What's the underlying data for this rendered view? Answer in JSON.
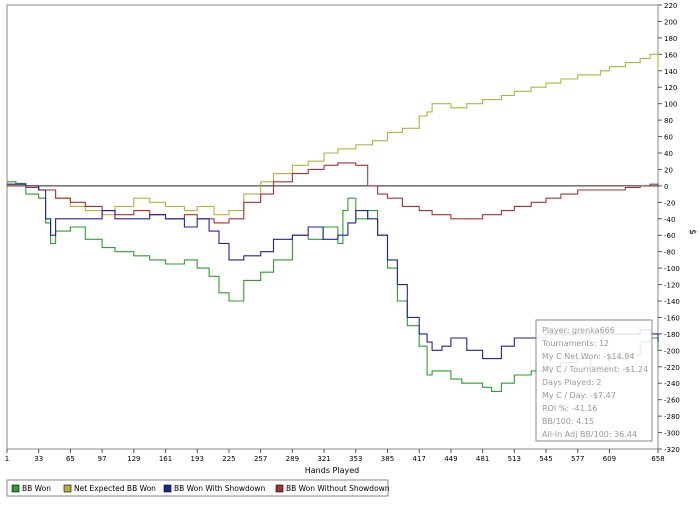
{
  "chart_data": {
    "type": "line",
    "xlabel": "Hands Played",
    "ylabel": "$",
    "x_ticks": [
      1,
      33,
      65,
      97,
      129,
      161,
      193,
      225,
      257,
      289,
      321,
      353,
      385,
      417,
      449,
      481,
      513,
      545,
      577,
      609,
      658
    ],
    "xlim": [
      1,
      658
    ],
    "ylim": [
      -320,
      220
    ],
    "y_ticks": [
      220,
      200,
      180,
      160,
      140,
      120,
      100,
      80,
      60,
      40,
      20,
      0,
      -20,
      -40,
      -60,
      -80,
      -100,
      -120,
      -140,
      -160,
      -180,
      -200,
      -220,
      -240,
      -260,
      -280,
      -300,
      -320
    ],
    "grid": false,
    "legend_position": "bottom-left",
    "series": [
      {
        "name": "BB Won",
        "color": "#2e9e2e",
        "x": [
          1,
          10,
          20,
          33,
          40,
          45,
          50,
          65,
          80,
          97,
          110,
          129,
          145,
          161,
          180,
          193,
          205,
          215,
          225,
          240,
          257,
          270,
          289,
          305,
          320,
          335,
          340,
          345,
          353,
          365,
          375,
          385,
          395,
          405,
          417,
          425,
          430,
          449,
          460,
          481,
          490,
          500,
          513,
          530,
          545,
          560,
          577,
          590,
          609,
          625,
          640,
          650,
          658
        ],
        "y": [
          5,
          3,
          -10,
          -15,
          -45,
          -70,
          -55,
          -50,
          -65,
          -75,
          -80,
          -85,
          -90,
          -95,
          -90,
          -100,
          -110,
          -130,
          -140,
          -115,
          -105,
          -90,
          -60,
          -65,
          -50,
          -70,
          -30,
          -15,
          -40,
          -30,
          -60,
          -100,
          -140,
          -170,
          -195,
          -230,
          -225,
          -235,
          -240,
          -245,
          -250,
          -240,
          -230,
          -225,
          -220,
          -215,
          -210,
          -220,
          -210,
          -205,
          -190,
          -185,
          -200
        ]
      },
      {
        "name": "Net Expected BB Won",
        "color": "#b5b23a",
        "x": [
          1,
          20,
          33,
          50,
          65,
          80,
          97,
          110,
          129,
          145,
          161,
          180,
          193,
          210,
          225,
          240,
          257,
          270,
          289,
          305,
          321,
          335,
          353,
          370,
          385,
          400,
          417,
          425,
          430,
          449,
          465,
          481,
          500,
          513,
          530,
          545,
          560,
          577,
          600,
          609,
          625,
          640,
          650,
          658
        ],
        "y": [
          2,
          0,
          -5,
          -15,
          -25,
          -30,
          -35,
          -25,
          -15,
          -20,
          -25,
          -30,
          -25,
          -35,
          -30,
          -10,
          5,
          15,
          25,
          30,
          40,
          45,
          50,
          55,
          65,
          70,
          85,
          90,
          100,
          95,
          100,
          105,
          110,
          115,
          120,
          125,
          130,
          135,
          140,
          145,
          150,
          155,
          160,
          140
        ]
      },
      {
        "name": "BB Won With Showdown",
        "color": "#22229a",
        "x": [
          1,
          20,
          33,
          40,
          45,
          50,
          65,
          80,
          97,
          110,
          129,
          145,
          161,
          180,
          193,
          205,
          215,
          225,
          240,
          257,
          270,
          289,
          305,
          320,
          335,
          345,
          353,
          365,
          375,
          385,
          395,
          405,
          417,
          425,
          430,
          440,
          449,
          465,
          481,
          500,
          513,
          545,
          577,
          609,
          630,
          640,
          650,
          658
        ],
        "y": [
          2,
          0,
          -5,
          -40,
          -60,
          -40,
          -40,
          -40,
          -30,
          -40,
          -40,
          -35,
          -40,
          -50,
          -40,
          -55,
          -70,
          -90,
          -85,
          -80,
          -65,
          -60,
          -50,
          -65,
          -60,
          -45,
          -30,
          -40,
          -60,
          -90,
          -120,
          -160,
          -180,
          -190,
          -200,
          -195,
          -185,
          -200,
          -210,
          -195,
          -185,
          -180,
          -180,
          -180,
          -180,
          -175,
          -180,
          -190
        ]
      },
      {
        "name": "BB Won Without Showdown",
        "color": "#a83232",
        "x": [
          1,
          20,
          33,
          50,
          65,
          80,
          97,
          110,
          129,
          145,
          161,
          180,
          193,
          210,
          225,
          240,
          257,
          270,
          289,
          305,
          321,
          335,
          353,
          365,
          375,
          385,
          400,
          417,
          430,
          449,
          465,
          481,
          500,
          513,
          530,
          545,
          560,
          577,
          590,
          609,
          625,
          640,
          650,
          658
        ],
        "y": [
          0,
          -2,
          -5,
          -15,
          -20,
          -25,
          -30,
          -35,
          -30,
          -35,
          -40,
          -35,
          -40,
          -45,
          -40,
          -20,
          -10,
          5,
          15,
          20,
          25,
          28,
          25,
          0,
          -10,
          -15,
          -25,
          -30,
          -35,
          -40,
          -40,
          -35,
          -30,
          -25,
          -20,
          -15,
          -10,
          -5,
          -5,
          -5,
          -2,
          0,
          2,
          0
        ]
      }
    ]
  },
  "stats_box": {
    "lines": [
      "Player: grenka666",
      "Tournaments: 12",
      "My C Net Won: -$14.94",
      "My C / Tournament: -$1.24",
      "Days Played: 2",
      "My C / Day: -$7.47",
      "ROI %: -41.16",
      "BB/100: 4.15",
      "All-In Adj BB/100: 36.44"
    ]
  }
}
